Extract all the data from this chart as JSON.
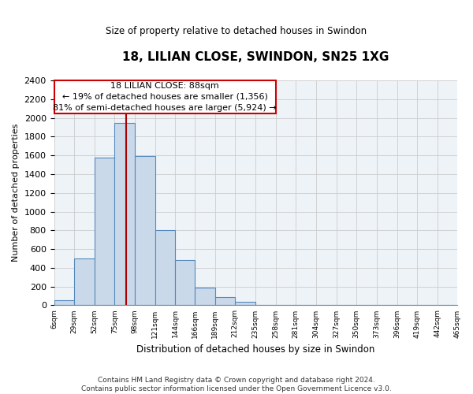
{
  "title": "18, LILIAN CLOSE, SWINDON, SN25 1XG",
  "subtitle": "Size of property relative to detached houses in Swindon",
  "xlabel": "Distribution of detached houses by size in Swindon",
  "ylabel": "Number of detached properties",
  "footer_line1": "Contains HM Land Registry data © Crown copyright and database right 2024.",
  "footer_line2": "Contains public sector information licensed under the Open Government Licence v3.0.",
  "bar_color": "#c9d9ea",
  "bar_edge_color": "#5588bb",
  "marker_line_color": "#aa0000",
  "annotation_box_edge_color": "#cc0000",
  "plot_bg_color": "#eef3f8",
  "bins": [
    6,
    29,
    52,
    75,
    98,
    121,
    144,
    166,
    189,
    212,
    235,
    258,
    281,
    304,
    327,
    350,
    373,
    396,
    419,
    442,
    465
  ],
  "counts": [
    50,
    500,
    1580,
    1950,
    1590,
    800,
    480,
    190,
    90,
    35,
    0,
    0,
    0,
    0,
    0,
    0,
    0,
    0,
    0,
    0
  ],
  "property_size": 88,
  "annotation_title": "18 LILIAN CLOSE: 88sqm",
  "annotation_line1": "← 19% of detached houses are smaller (1,356)",
  "annotation_line2": "81% of semi-detached houses are larger (5,924) →",
  "ylim": [
    0,
    2400
  ],
  "yticks": [
    0,
    200,
    400,
    600,
    800,
    1000,
    1200,
    1400,
    1600,
    1800,
    2000,
    2200,
    2400
  ],
  "background_color": "#ffffff",
  "grid_color": "#cccccc"
}
